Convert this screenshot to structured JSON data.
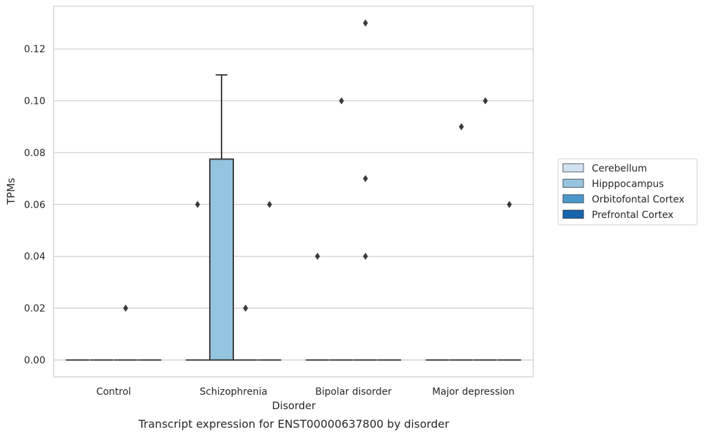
{
  "chart_data": {
    "type": "box",
    "title": "",
    "caption": "Transcript expression for ENST00000637800 by disorder",
    "xlabel": "Disorder",
    "ylabel": "TPMs",
    "ylim": [
      -0.0065,
      0.1365
    ],
    "yticks": [
      0.0,
      0.02,
      0.04,
      0.06,
      0.08,
      0.1,
      0.12
    ],
    "ytick_labels": [
      "0.00",
      "0.02",
      "0.04",
      "0.06",
      "0.08",
      "0.10",
      "0.12"
    ],
    "grid": "horizontal",
    "legend_position": "right",
    "categories": [
      "Control",
      "Schizophrenia",
      "Bipolar disorder",
      "Major depression"
    ],
    "series": [
      {
        "name": "Cerebellum",
        "color": "#d0e1f2"
      },
      {
        "name": "Hipppocampus",
        "color": "#94c4df"
      },
      {
        "name": "Orbitofontal Cortex",
        "color": "#4a98c9"
      },
      {
        "name": "Prefrontal Cortex",
        "color": "#1764ab"
      }
    ],
    "boxes": [
      {
        "category": "Control",
        "series": "Cerebellum",
        "q1": 0,
        "median": 0,
        "q3": 0,
        "whisker_low": 0,
        "whisker_high": 0,
        "outliers": []
      },
      {
        "category": "Control",
        "series": "Hipppocampus",
        "q1": 0,
        "median": 0,
        "q3": 0,
        "whisker_low": 0,
        "whisker_high": 0,
        "outliers": []
      },
      {
        "category": "Control",
        "series": "Orbitofontal Cortex",
        "q1": 0,
        "median": 0,
        "q3": 0,
        "whisker_low": 0,
        "whisker_high": 0,
        "outliers": [
          0.02
        ]
      },
      {
        "category": "Control",
        "series": "Prefrontal Cortex",
        "q1": 0,
        "median": 0,
        "q3": 0,
        "whisker_low": 0,
        "whisker_high": 0,
        "outliers": []
      },
      {
        "category": "Schizophrenia",
        "series": "Cerebellum",
        "q1": 0,
        "median": 0,
        "q3": 0,
        "whisker_low": 0,
        "whisker_high": 0,
        "outliers": [
          0.06
        ]
      },
      {
        "category": "Schizophrenia",
        "series": "Hipppocampus",
        "q1": 0,
        "median": 0,
        "q3": 0.0775,
        "whisker_low": 0,
        "whisker_high": 0.11,
        "outliers": []
      },
      {
        "category": "Schizophrenia",
        "series": "Orbitofontal Cortex",
        "q1": 0,
        "median": 0,
        "q3": 0,
        "whisker_low": 0,
        "whisker_high": 0,
        "outliers": [
          0.02
        ]
      },
      {
        "category": "Schizophrenia",
        "series": "Prefrontal Cortex",
        "q1": 0,
        "median": 0,
        "q3": 0,
        "whisker_low": 0,
        "whisker_high": 0,
        "outliers": [
          0.06
        ]
      },
      {
        "category": "Bipolar disorder",
        "series": "Cerebellum",
        "q1": 0,
        "median": 0,
        "q3": 0,
        "whisker_low": 0,
        "whisker_high": 0,
        "outliers": [
          0.04
        ]
      },
      {
        "category": "Bipolar disorder",
        "series": "Hipppocampus",
        "q1": 0,
        "median": 0,
        "q3": 0,
        "whisker_low": 0,
        "whisker_high": 0,
        "outliers": [
          0.1
        ]
      },
      {
        "category": "Bipolar disorder",
        "series": "Orbitofontal Cortex",
        "q1": 0,
        "median": 0,
        "q3": 0,
        "whisker_low": 0,
        "whisker_high": 0,
        "outliers": [
          0.13,
          0.07,
          0.04
        ]
      },
      {
        "category": "Bipolar disorder",
        "series": "Prefrontal Cortex",
        "q1": 0,
        "median": 0,
        "q3": 0,
        "whisker_low": 0,
        "whisker_high": 0,
        "outliers": []
      },
      {
        "category": "Major depression",
        "series": "Cerebellum",
        "q1": 0,
        "median": 0,
        "q3": 0,
        "whisker_low": 0,
        "whisker_high": 0,
        "outliers": []
      },
      {
        "category": "Major depression",
        "series": "Hipppocampus",
        "q1": 0,
        "median": 0,
        "q3": 0,
        "whisker_low": 0,
        "whisker_high": 0,
        "outliers": [
          0.09
        ]
      },
      {
        "category": "Major depression",
        "series": "Orbitofontal Cortex",
        "q1": 0,
        "median": 0,
        "q3": 0,
        "whisker_low": 0,
        "whisker_high": 0,
        "outliers": [
          0.1
        ]
      },
      {
        "category": "Major depression",
        "series": "Prefrontal Cortex",
        "q1": 0,
        "median": 0,
        "q3": 0,
        "whisker_low": 0,
        "whisker_high": 0,
        "outliers": [
          0.06
        ]
      }
    ]
  }
}
